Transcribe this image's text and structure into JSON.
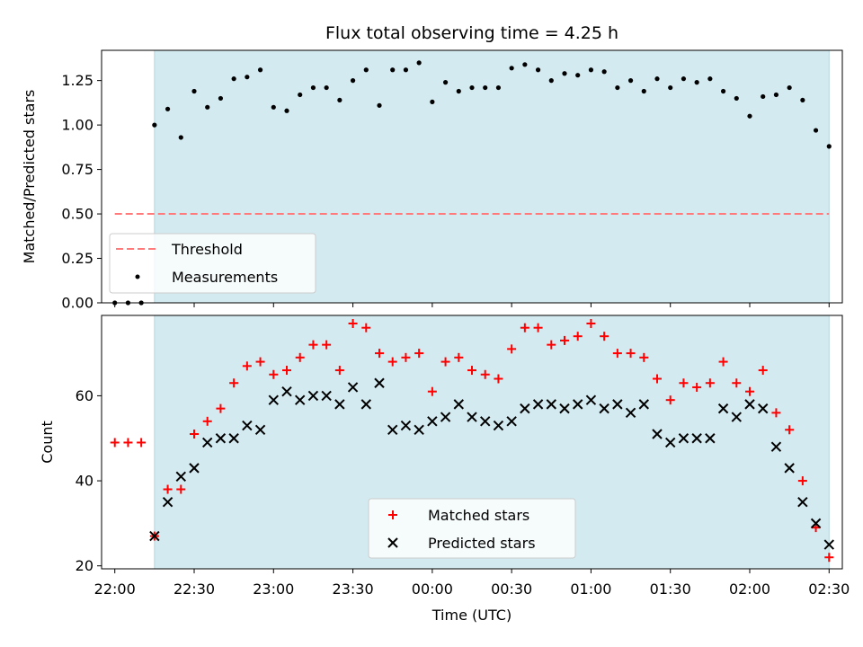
{
  "chart_data": [
    {
      "type": "scatter",
      "title": "Flux total observing time = 4.25 h",
      "xlabel": "",
      "ylabel": "Matched/Predicted stars",
      "xlim": [
        "21:55",
        "02:35"
      ],
      "ylim": [
        0,
        1.42
      ],
      "yticks": [
        "0.00",
        "0.25",
        "0.50",
        "0.75",
        "1.00",
        "1.25"
      ],
      "shaded_range": [
        "22:15",
        "02:30"
      ],
      "threshold": {
        "name": "Threshold",
        "value": 0.5,
        "x_start": "22:00",
        "x_end": "02:30",
        "color": "#ff7b7b"
      },
      "legend_position": "lower-left",
      "series": [
        {
          "name": "Measurements",
          "color": "#000000",
          "x": [
            "22:00",
            "22:05",
            "22:10",
            "22:15",
            "22:20",
            "22:25",
            "22:30",
            "22:35",
            "22:40",
            "22:45",
            "22:50",
            "22:55",
            "23:00",
            "23:05",
            "23:10",
            "23:15",
            "23:20",
            "23:25",
            "23:30",
            "23:35",
            "23:40",
            "23:45",
            "23:50",
            "23:55",
            "00:00",
            "00:05",
            "00:10",
            "00:15",
            "00:20",
            "00:25",
            "00:30",
            "00:35",
            "00:40",
            "00:45",
            "00:50",
            "00:55",
            "01:00",
            "01:05",
            "01:10",
            "01:15",
            "01:20",
            "01:25",
            "01:30",
            "01:35",
            "01:40",
            "01:45",
            "01:50",
            "01:55",
            "02:00",
            "02:05",
            "02:10",
            "02:15",
            "02:20",
            "02:25",
            "02:30"
          ],
          "y": [
            0,
            0,
            0,
            1.0,
            1.09,
            0.93,
            1.19,
            1.1,
            1.15,
            1.26,
            1.27,
            1.31,
            1.1,
            1.08,
            1.17,
            1.21,
            1.21,
            1.14,
            1.25,
            1.31,
            1.11,
            1.31,
            1.31,
            1.35,
            1.13,
            1.24,
            1.19,
            1.21,
            1.21,
            1.21,
            1.32,
            1.34,
            1.31,
            1.25,
            1.29,
            1.28,
            1.31,
            1.3,
            1.21,
            1.25,
            1.19,
            1.26,
            1.21,
            1.26,
            1.24,
            1.26,
            1.19,
            1.15,
            1.05,
            1.16,
            1.17,
            1.21,
            1.14,
            0.97,
            0.88
          ]
        }
      ]
    },
    {
      "type": "scatter",
      "title": "",
      "xlabel": "Time (UTC)",
      "ylabel": "Count",
      "xlim": [
        "21:55",
        "02:35"
      ],
      "ylim": [
        19.3,
        78.9
      ],
      "yticks": [
        "20",
        "40",
        "60"
      ],
      "xticks": [
        "22:00",
        "22:30",
        "23:00",
        "23:30",
        "00:00",
        "00:30",
        "01:00",
        "01:30",
        "02:00",
        "02:30"
      ],
      "shaded_range": [
        "22:15",
        "02:30"
      ],
      "legend_position": "lower-center",
      "series": [
        {
          "name": "Matched stars",
          "marker": "plus",
          "color": "#ff0000",
          "x": [
            "22:00",
            "22:05",
            "22:10",
            "22:15",
            "22:20",
            "22:25",
            "22:30",
            "22:35",
            "22:40",
            "22:45",
            "22:50",
            "22:55",
            "23:00",
            "23:05",
            "23:10",
            "23:15",
            "23:20",
            "23:25",
            "23:30",
            "23:35",
            "23:40",
            "23:45",
            "23:50",
            "23:55",
            "00:00",
            "00:05",
            "00:10",
            "00:15",
            "00:20",
            "00:25",
            "00:30",
            "00:35",
            "00:40",
            "00:45",
            "00:50",
            "00:55",
            "01:00",
            "01:05",
            "01:10",
            "01:15",
            "01:20",
            "01:25",
            "01:30",
            "01:35",
            "01:40",
            "01:45",
            "01:50",
            "01:55",
            "02:00",
            "02:05",
            "02:10",
            "02:15",
            "02:20",
            "02:25",
            "02:30"
          ],
          "y": [
            49,
            49,
            49,
            27,
            38,
            38,
            51,
            54,
            57,
            63,
            67,
            68,
            65,
            66,
            69,
            72,
            72,
            66,
            77,
            76,
            70,
            68,
            69,
            70,
            61,
            68,
            69,
            66,
            65,
            64,
            71,
            76,
            76,
            72,
            73,
            74,
            77,
            74,
            70,
            70,
            69,
            64,
            59,
            63,
            62,
            63,
            68,
            63,
            61,
            66,
            56,
            52,
            40,
            29,
            22
          ]
        },
        {
          "name": "Predicted stars",
          "marker": "x",
          "color": "#000000",
          "x": [
            "22:15",
            "22:20",
            "22:25",
            "22:30",
            "22:35",
            "22:40",
            "22:45",
            "22:50",
            "22:55",
            "23:00",
            "23:05",
            "23:10",
            "23:15",
            "23:20",
            "23:25",
            "23:30",
            "23:35",
            "23:40",
            "23:45",
            "23:50",
            "23:55",
            "00:00",
            "00:05",
            "00:10",
            "00:15",
            "00:20",
            "00:25",
            "00:30",
            "00:35",
            "00:40",
            "00:45",
            "00:50",
            "00:55",
            "01:00",
            "01:05",
            "01:10",
            "01:15",
            "01:20",
            "01:25",
            "01:30",
            "01:35",
            "01:40",
            "01:45",
            "01:50",
            "01:55",
            "02:00",
            "02:05",
            "02:10",
            "02:15",
            "02:20",
            "02:25",
            "02:30"
          ],
          "y": [
            27,
            35,
            41,
            43,
            49,
            50,
            50,
            53,
            52,
            59,
            61,
            59,
            60,
            60,
            58,
            62,
            58,
            63,
            52,
            53,
            52,
            54,
            55,
            58,
            55,
            54,
            53,
            54,
            57,
            58,
            58,
            57,
            58,
            59,
            57,
            58,
            56,
            58,
            51,
            49,
            50,
            50,
            50,
            57,
            55,
            58,
            57,
            48,
            43,
            35,
            30,
            25
          ]
        }
      ]
    }
  ]
}
